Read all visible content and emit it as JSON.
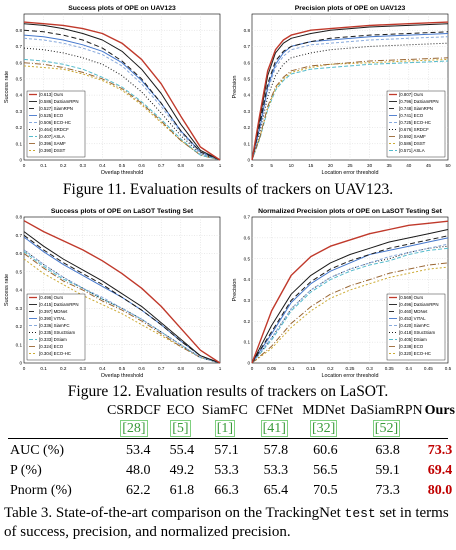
{
  "colors": {
    "ours": "#c0392b",
    "dasiamrpn": "#1a1a1a",
    "best": "#c00000",
    "cite": "#3a9a3a"
  },
  "fig11": {
    "caption": "Figure 11. Evaluation results of trackers on UAV123."
  },
  "fig12": {
    "caption": "Figure 12. Evaluation results of trackers on LaSOT."
  },
  "table3": {
    "headers": [
      "CSRDCF",
      "ECO",
      "SiamFC",
      "CFNet",
      "MDNet",
      "DaSiamRPN",
      "Ours"
    ],
    "citations": [
      "[28]",
      "[5]",
      "[1]",
      "[41]",
      "[32]",
      "[52]",
      ""
    ],
    "rows": [
      {
        "label": "AUC (%)",
        "values": [
          "53.4",
          "55.4",
          "57.1",
          "57.8",
          "60.6",
          "63.8",
          "73.3"
        ]
      },
      {
        "label": "P (%)",
        "values": [
          "48.0",
          "49.2",
          "53.3",
          "53.3",
          "56.5",
          "59.1",
          "69.4"
        ]
      },
      {
        "label": "Pnorm (%)",
        "values": [
          "62.2",
          "61.8",
          "66.3",
          "65.4",
          "70.5",
          "73.3",
          "80.0"
        ]
      }
    ],
    "caption_prefix": "Table 3. State-of-the-art comparison on the TrackingNet ",
    "caption_mono": "test",
    "caption_suffix": " set in terms of success, precision, and normalized precision."
  },
  "chart_data": [
    {
      "type": "line",
      "title": "Success plots of OPE on UAV123",
      "xlabel": "Overlap threshold",
      "ylabel": "Success rate",
      "xlim": [
        0,
        1
      ],
      "ylim": [
        0,
        0.9
      ],
      "xticks": [
        "0",
        "0.1",
        "0.2",
        "0.3",
        "0.4",
        "0.5",
        "0.6",
        "0.7",
        "0.8",
        "0.9",
        "1"
      ],
      "yticks": [
        "0",
        "0.1",
        "0.2",
        "0.3",
        "0.4",
        "0.5",
        "0.6",
        "0.7",
        "0.8"
      ],
      "legend_position": "bottom-left",
      "x": [
        0,
        0.1,
        0.2,
        0.3,
        0.4,
        0.5,
        0.6,
        0.7,
        0.8,
        0.9,
        1.0
      ],
      "series": [
        {
          "name": "[0.613] Ours",
          "color": "#c0392b",
          "dash": "",
          "values": [
            0.85,
            0.84,
            0.83,
            0.81,
            0.78,
            0.72,
            0.62,
            0.47,
            0.27,
            0.08,
            0
          ]
        },
        {
          "name": "[0.586] DaSiamRPN",
          "color": "#1a1a1a",
          "dash": "",
          "values": [
            0.84,
            0.83,
            0.81,
            0.78,
            0.74,
            0.67,
            0.56,
            0.41,
            0.22,
            0.06,
            0
          ]
        },
        {
          "name": "[0.527] SiamRPN",
          "color": "#1a1a1a",
          "dash": "5,3",
          "values": [
            0.8,
            0.79,
            0.77,
            0.74,
            0.69,
            0.61,
            0.5,
            0.35,
            0.18,
            0.05,
            0
          ]
        },
        {
          "name": "[0.525] ECO",
          "color": "#4477cc",
          "dash": "",
          "values": [
            0.77,
            0.76,
            0.74,
            0.71,
            0.67,
            0.6,
            0.49,
            0.35,
            0.18,
            0.05,
            0
          ]
        },
        {
          "name": "[0.506] ECO-HC",
          "color": "#88aadd",
          "dash": "3,2",
          "values": [
            0.75,
            0.74,
            0.72,
            0.69,
            0.65,
            0.58,
            0.47,
            0.33,
            0.17,
            0.04,
            0
          ]
        },
        {
          "name": "[0.464] SRDCF",
          "color": "#1a1a1a",
          "dash": "1,2",
          "values": [
            0.69,
            0.68,
            0.66,
            0.63,
            0.59,
            0.52,
            0.42,
            0.29,
            0.15,
            0.04,
            0
          ]
        },
        {
          "name": "[0.407] ASLA",
          "color": "#55bbcc",
          "dash": "4,2",
          "values": [
            0.62,
            0.61,
            0.59,
            0.56,
            0.51,
            0.45,
            0.36,
            0.25,
            0.13,
            0.03,
            0
          ]
        },
        {
          "name": "[0.396] SAMF",
          "color": "#996633",
          "dash": "6,2,1,2",
          "values": [
            0.6,
            0.59,
            0.57,
            0.54,
            0.5,
            0.44,
            0.35,
            0.24,
            0.12,
            0.03,
            0
          ]
        },
        {
          "name": "[0.390] DSST",
          "color": "#ccaa33",
          "dash": "2,2",
          "values": [
            0.58,
            0.57,
            0.56,
            0.53,
            0.49,
            0.43,
            0.34,
            0.23,
            0.12,
            0.03,
            0
          ]
        }
      ]
    },
    {
      "type": "line",
      "title": "Precision plots of OPE on UAV123",
      "xlabel": "Location error threshold",
      "ylabel": "Precision",
      "xlim": [
        0,
        50
      ],
      "ylim": [
        0,
        0.9
      ],
      "xticks": [
        "0",
        "5",
        "10",
        "15",
        "20",
        "25",
        "30",
        "35",
        "40",
        "45",
        "50"
      ],
      "yticks": [
        "0",
        "0.1",
        "0.2",
        "0.3",
        "0.4",
        "0.5",
        "0.6",
        "0.7",
        "0.8"
      ],
      "legend_position": "bottom-right",
      "x": [
        0,
        2,
        4,
        6,
        8,
        10,
        15,
        20,
        30,
        40,
        50
      ],
      "series": [
        {
          "name": "[0.807] Ours",
          "color": "#c0392b",
          "dash": "",
          "values": [
            0,
            0.28,
            0.55,
            0.68,
            0.74,
            0.77,
            0.8,
            0.81,
            0.83,
            0.84,
            0.85
          ]
        },
        {
          "name": "[0.796] DaSiamRPN",
          "color": "#1a1a1a",
          "dash": "",
          "values": [
            0,
            0.25,
            0.52,
            0.66,
            0.72,
            0.75,
            0.78,
            0.8,
            0.82,
            0.83,
            0.84
          ]
        },
        {
          "name": "[0.748] SiamRPN",
          "color": "#1a1a1a",
          "dash": "5,3",
          "values": [
            0,
            0.22,
            0.47,
            0.61,
            0.67,
            0.7,
            0.73,
            0.75,
            0.77,
            0.78,
            0.79
          ]
        },
        {
          "name": "[0.741] ECO",
          "color": "#4477cc",
          "dash": "",
          "values": [
            0,
            0.2,
            0.45,
            0.59,
            0.66,
            0.7,
            0.73,
            0.74,
            0.76,
            0.77,
            0.78
          ]
        },
        {
          "name": "[0.725] ECO-HC",
          "color": "#88aadd",
          "dash": "3,2",
          "values": [
            0,
            0.19,
            0.43,
            0.57,
            0.64,
            0.68,
            0.71,
            0.72,
            0.74,
            0.75,
            0.76
          ]
        },
        {
          "name": "[0.676] SRDCF",
          "color": "#1a1a1a",
          "dash": "1,2",
          "values": [
            0,
            0.17,
            0.39,
            0.52,
            0.59,
            0.63,
            0.66,
            0.68,
            0.7,
            0.71,
            0.72
          ]
        },
        {
          "name": "[0.592] SAMF",
          "color": "#996633",
          "dash": "6,2,1,2",
          "values": [
            0,
            0.14,
            0.33,
            0.45,
            0.51,
            0.55,
            0.58,
            0.59,
            0.61,
            0.62,
            0.63
          ]
        },
        {
          "name": "[0.586] DSST",
          "color": "#ccaa33",
          "dash": "2,2",
          "values": [
            0,
            0.14,
            0.32,
            0.44,
            0.5,
            0.54,
            0.57,
            0.59,
            0.6,
            0.61,
            0.62
          ]
        },
        {
          "name": "[0.571] ASLA",
          "color": "#55bbcc",
          "dash": "4,2",
          "values": [
            0,
            0.13,
            0.31,
            0.43,
            0.49,
            0.53,
            0.56,
            0.57,
            0.59,
            0.6,
            0.61
          ]
        }
      ]
    },
    {
      "type": "line",
      "title": "Success plots of OPE on LaSOT Testing Set",
      "xlabel": "Overlap threshold",
      "ylabel": "Success rate",
      "xlim": [
        0,
        1
      ],
      "ylim": [
        0,
        0.8
      ],
      "xticks": [
        "0",
        "0.1",
        "0.2",
        "0.3",
        "0.4",
        "0.5",
        "0.6",
        "0.7",
        "0.8",
        "0.9",
        "1"
      ],
      "yticks": [
        "0",
        "0.1",
        "0.2",
        "0.3",
        "0.4",
        "0.5",
        "0.6",
        "0.7",
        "0.8"
      ],
      "legend_position": "bottom-left",
      "x": [
        0,
        0.1,
        0.2,
        0.3,
        0.4,
        0.5,
        0.6,
        0.7,
        0.8,
        0.9,
        1.0
      ],
      "series": [
        {
          "name": "[0.496] Ours",
          "color": "#c0392b",
          "dash": "",
          "values": [
            0.78,
            0.72,
            0.67,
            0.62,
            0.56,
            0.49,
            0.41,
            0.31,
            0.19,
            0.07,
            0
          ]
        },
        {
          "name": "[0.415] DaSiamRPN",
          "color": "#1a1a1a",
          "dash": "",
          "values": [
            0.72,
            0.64,
            0.57,
            0.51,
            0.45,
            0.38,
            0.31,
            0.22,
            0.13,
            0.04,
            0
          ]
        },
        {
          "name": "[0.397] MDNet",
          "color": "#1a1a1a",
          "dash": "5,3",
          "values": [
            0.7,
            0.62,
            0.55,
            0.49,
            0.43,
            0.36,
            0.29,
            0.21,
            0.12,
            0.04,
            0
          ]
        },
        {
          "name": "[0.390] VITAL",
          "color": "#4477cc",
          "dash": "",
          "values": [
            0.69,
            0.61,
            0.54,
            0.48,
            0.42,
            0.36,
            0.29,
            0.21,
            0.12,
            0.04,
            0
          ]
        },
        {
          "name": "[0.336] SiamFC",
          "color": "#88aadd",
          "dash": "3,2",
          "values": [
            0.62,
            0.54,
            0.47,
            0.41,
            0.36,
            0.3,
            0.24,
            0.17,
            0.1,
            0.03,
            0
          ]
        },
        {
          "name": "[0.335] StructSiam",
          "color": "#1a1a1a",
          "dash": "1,2",
          "values": [
            0.62,
            0.54,
            0.47,
            0.41,
            0.35,
            0.3,
            0.24,
            0.17,
            0.1,
            0.03,
            0
          ]
        },
        {
          "name": "[0.333] DSiam",
          "color": "#55bbcc",
          "dash": "4,2",
          "values": [
            0.61,
            0.53,
            0.46,
            0.41,
            0.35,
            0.3,
            0.24,
            0.17,
            0.1,
            0.03,
            0
          ]
        },
        {
          "name": "[0.324] ECO",
          "color": "#996633",
          "dash": "6,2,1,2",
          "values": [
            0.6,
            0.52,
            0.45,
            0.4,
            0.34,
            0.29,
            0.23,
            0.16,
            0.09,
            0.03,
            0
          ]
        },
        {
          "name": "[0.304] ECO-HC",
          "color": "#ccaa33",
          "dash": "2,2",
          "values": [
            0.57,
            0.49,
            0.43,
            0.37,
            0.32,
            0.27,
            0.21,
            0.15,
            0.09,
            0.03,
            0
          ]
        }
      ]
    },
    {
      "type": "line",
      "title": "Normalized Precision plots of OPE on LaSOT Testing Set",
      "xlabel": "Location error threshold",
      "ylabel": "Precision",
      "xlim": [
        0,
        0.5
      ],
      "ylim": [
        0,
        0.7
      ],
      "xticks": [
        "0",
        "0.05",
        "0.1",
        "0.15",
        "0.2",
        "0.25",
        "0.3",
        "0.35",
        "0.4",
        "0.45",
        "0.5"
      ],
      "yticks": [
        "0",
        "0.1",
        "0.2",
        "0.3",
        "0.4",
        "0.5",
        "0.6",
        "0.7"
      ],
      "legend_position": "bottom-right",
      "x": [
        0,
        0.05,
        0.1,
        0.15,
        0.2,
        0.25,
        0.3,
        0.35,
        0.4,
        0.45,
        0.5
      ],
      "series": [
        {
          "name": "[0.569] Ours",
          "color": "#c0392b",
          "dash": "",
          "values": [
            0,
            0.25,
            0.42,
            0.51,
            0.56,
            0.59,
            0.62,
            0.64,
            0.66,
            0.67,
            0.68
          ]
        },
        {
          "name": "[0.496] DaSiamRPN",
          "color": "#1a1a1a",
          "dash": "",
          "values": [
            0,
            0.18,
            0.33,
            0.42,
            0.48,
            0.52,
            0.55,
            0.58,
            0.6,
            0.62,
            0.64
          ]
        },
        {
          "name": "[0.460] MDNet",
          "color": "#1a1a1a",
          "dash": "5,3",
          "values": [
            0,
            0.15,
            0.3,
            0.39,
            0.45,
            0.49,
            0.52,
            0.55,
            0.57,
            0.59,
            0.61
          ]
        },
        {
          "name": "[0.453] VITAL",
          "color": "#4477cc",
          "dash": "",
          "values": [
            0,
            0.14,
            0.29,
            0.38,
            0.44,
            0.48,
            0.52,
            0.54,
            0.56,
            0.58,
            0.6
          ]
        },
        {
          "name": "[0.420] SiamFC",
          "color": "#88aadd",
          "dash": "3,2",
          "values": [
            0,
            0.12,
            0.26,
            0.35,
            0.41,
            0.45,
            0.48,
            0.51,
            0.53,
            0.55,
            0.57
          ]
        },
        {
          "name": "[0.418] StructSiam",
          "color": "#1a1a1a",
          "dash": "1,2",
          "values": [
            0,
            0.12,
            0.26,
            0.35,
            0.41,
            0.45,
            0.48,
            0.5,
            0.53,
            0.55,
            0.56
          ]
        },
        {
          "name": "[0.405] DSiam",
          "color": "#55bbcc",
          "dash": "4,2",
          "values": [
            0,
            0.11,
            0.25,
            0.34,
            0.4,
            0.44,
            0.47,
            0.49,
            0.52,
            0.54,
            0.55
          ]
        },
        {
          "name": "[0.338] ECO",
          "color": "#996633",
          "dash": "6,2,1,2",
          "values": [
            0,
            0.08,
            0.19,
            0.27,
            0.33,
            0.37,
            0.4,
            0.43,
            0.45,
            0.47,
            0.48
          ]
        },
        {
          "name": "[0.320] ECO-HC",
          "color": "#ccaa33",
          "dash": "2,2",
          "values": [
            0,
            0.07,
            0.17,
            0.25,
            0.31,
            0.35,
            0.38,
            0.41,
            0.43,
            0.45,
            0.46
          ]
        }
      ]
    }
  ]
}
